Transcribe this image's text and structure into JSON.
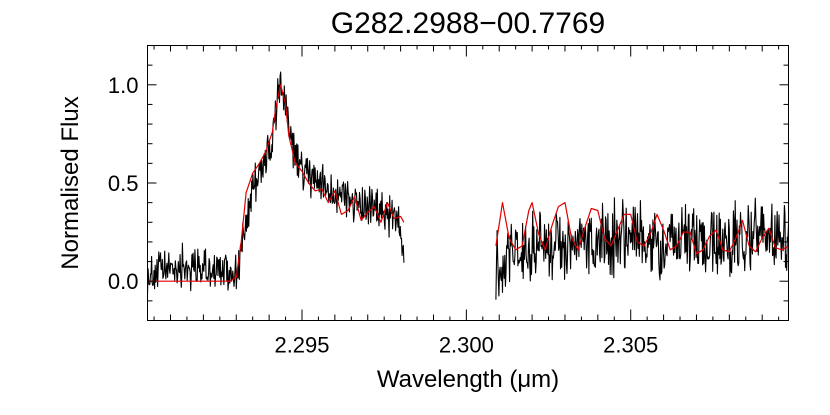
{
  "chart_data": {
    "type": "line",
    "title": "G282.2988−00.7769",
    "xlabel": "Wavelength (μm)",
    "ylabel": "Normalised Flux",
    "xlim": [
      2.2903,
      2.3098
    ],
    "ylim": [
      -0.2,
      1.2
    ],
    "x_ticks": [
      {
        "value": 2.295,
        "label": "2.295"
      },
      {
        "value": 2.3,
        "label": "2.300"
      },
      {
        "value": 2.305,
        "label": "2.305"
      }
    ],
    "y_ticks": [
      {
        "value": 0.0,
        "label": "0.0"
      },
      {
        "value": 0.5,
        "label": "0.5"
      },
      {
        "value": 1.0,
        "label": "1.0"
      }
    ],
    "grid": false,
    "legend": "none",
    "gap": [
      2.2981,
      2.3009
    ],
    "series": [
      {
        "color": "#000000",
        "style": "observed",
        "segments": [
          {
            "x": [
              2.2903,
              2.2913,
              2.2923,
              2.293,
              2.29325,
              2.2935,
              2.2938,
              2.2941,
              2.29435,
              2.2945,
              2.2947,
              2.295,
              2.2955,
              2.296,
              2.2965,
              2.297,
              2.2975,
              2.298,
              2.2981
            ],
            "y": [
              0.03,
              0.08,
              0.05,
              0.05,
              0.22,
              0.5,
              0.58,
              0.7,
              1.03,
              0.9,
              0.68,
              0.56,
              0.5,
              0.46,
              0.42,
              0.37,
              0.35,
              0.3,
              0.15
            ]
          },
          {
            "x": [
              2.3009,
              2.3012,
              2.302,
              2.303,
              2.304,
              2.305,
              2.306,
              2.307,
              2.308,
              2.309,
              2.3098
            ],
            "y": [
              0.05,
              0.18,
              0.16,
              0.18,
              0.2,
              0.24,
              0.18,
              0.2,
              0.21,
              0.26,
              0.2
            ]
          }
        ]
      },
      {
        "color": "#e00000",
        "style": "model",
        "segments": [
          {
            "x": [
              2.2903,
              2.291,
              2.292,
              2.2928,
              2.293,
              2.29315,
              2.2933,
              2.2935,
              2.2937,
              2.2939,
              2.2941,
              2.2942,
              2.29435,
              2.2945,
              2.2946,
              2.2948,
              2.295,
              2.2952,
              2.2954,
              2.2956,
              2.2958,
              2.296,
              2.2962,
              2.2964,
              2.2966,
              2.2968,
              2.297,
              2.2972,
              2.2974,
              2.2976,
              2.2978,
              2.298,
              2.2981
            ],
            "y": [
              0.0,
              0.0,
              0.0,
              0.0,
              0.02,
              0.2,
              0.45,
              0.55,
              0.6,
              0.66,
              0.76,
              0.88,
              1.0,
              0.9,
              0.74,
              0.6,
              0.56,
              0.5,
              0.46,
              0.47,
              0.4,
              0.46,
              0.34,
              0.36,
              0.43,
              0.31,
              0.35,
              0.38,
              0.3,
              0.4,
              0.32,
              0.33,
              0.3
            ]
          },
          {
            "x": [
              2.3009,
              2.3011,
              2.3013,
              2.3015,
              2.3017,
              2.3019,
              2.302,
              2.3022,
              2.3024,
              2.3026,
              2.3028,
              2.303,
              2.3032,
              2.3034,
              2.3036,
              2.3038,
              2.304,
              2.3042,
              2.3044,
              2.3046,
              2.3048,
              2.305,
              2.3052,
              2.3054,
              2.3056,
              2.3058,
              2.306,
              2.3062,
              2.3064,
              2.3066,
              2.3068,
              2.307,
              2.3072,
              2.3074,
              2.3076,
              2.3078,
              2.308,
              2.3082,
              2.3084,
              2.3086,
              2.3088,
              2.309,
              2.3092,
              2.3094,
              2.3096,
              2.3098
            ],
            "y": [
              0.18,
              0.4,
              0.22,
              0.16,
              0.18,
              0.36,
              0.4,
              0.24,
              0.16,
              0.28,
              0.38,
              0.4,
              0.22,
              0.16,
              0.27,
              0.37,
              0.36,
              0.22,
              0.18,
              0.26,
              0.34,
              0.34,
              0.2,
              0.18,
              0.24,
              0.34,
              0.26,
              0.16,
              0.18,
              0.25,
              0.25,
              0.14,
              0.16,
              0.23,
              0.26,
              0.16,
              0.15,
              0.22,
              0.31,
              0.18,
              0.15,
              0.22,
              0.27,
              0.17,
              0.16,
              0.18
            ]
          }
        ]
      }
    ]
  }
}
